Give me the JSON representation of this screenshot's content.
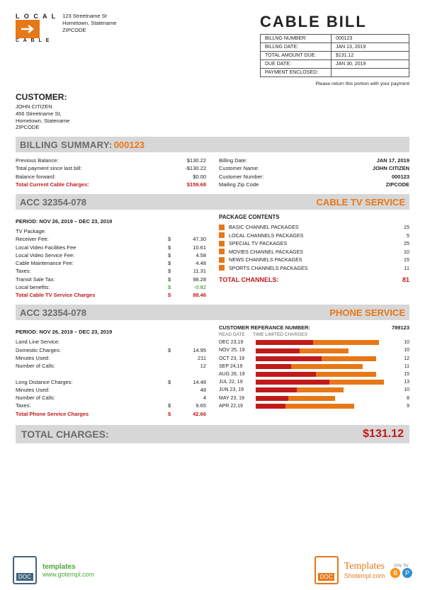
{
  "company": {
    "name_top": "L O C A L",
    "name_bottom": "C A B L E",
    "address": [
      "123 Streetname St",
      "Hometown, Statename",
      "ZIPCODE"
    ]
  },
  "title": "CABLE  BILL",
  "info_box": [
    {
      "label": "BILLNG NUMBER:",
      "value": "000123"
    },
    {
      "label": "BILLNG DATE:",
      "value": "JAN 13, 2019"
    },
    {
      "label": "TOTAL AMOUNT DUE:",
      "value": "$131.12"
    },
    {
      "label": "DUE DATE:",
      "value": "JAN 30, 2019"
    },
    {
      "label": "PAYMENT ENCLOSED:",
      "value": ""
    }
  ],
  "return_note": "Please return this portion with your payment",
  "customer": {
    "heading": "CUSTOMER:",
    "lines": [
      "JOHN CITIZEN",
      "456 Streetname St,",
      "Hometown, Statename",
      "ZIPCODE"
    ]
  },
  "billing_summary": {
    "heading": "BILLING SUMMARY:",
    "number": "000123",
    "left": [
      {
        "label": "Previous Balance:",
        "value": "$130.22"
      },
      {
        "label": "Total payment since last bill:",
        "value": "-$130.22"
      },
      {
        "label": "Balance forward:",
        "value": "$0.00"
      },
      {
        "label": "Total Current Cable Charges:",
        "value": "$159.68",
        "red": true
      }
    ],
    "right": [
      {
        "label": "Billing Date:",
        "value": "JAN 17, 2019"
      },
      {
        "label": "Customer Name:",
        "value": "JOHN CITIZEN"
      },
      {
        "label": "Customer Number:",
        "value": "000123"
      },
      {
        "label": "Mailing Zip Code",
        "value": "ZIPCODE"
      }
    ]
  },
  "tv": {
    "account": "ACC 32354-078",
    "service": "CABLE TV SERVICE",
    "period": "PERIOD: NOV 26, 2019 – DEC 23, 2019",
    "lines": [
      {
        "label": "TV Package:",
        "amount": ""
      },
      {
        "label": "Receiver Fee:",
        "amount": "47.30"
      },
      {
        "label": "Local Video Facilities Fee",
        "amount": "10.61"
      },
      {
        "label": "Local Video Service Fee:",
        "amount": "4.58"
      },
      {
        "label": "Cable Maintenance Fee:",
        "amount": "4.48"
      },
      {
        "label": "Taxes:",
        "amount": "11.31"
      },
      {
        "label": "Transit Sale Tax:",
        "amount": "98.28"
      },
      {
        "label": "Local benefits:",
        "amount": "-0.82",
        "green": true
      }
    ],
    "total": {
      "label": "Total Cable TV Service Charges",
      "amount": "88.46"
    },
    "packages_title": "PACKAGE CONTENTS",
    "packages": [
      {
        "name": "BASIC CHANNEL PACKAGES",
        "count": "15"
      },
      {
        "name": "LOCAL CHANNELS PACKAGES",
        "count": "5"
      },
      {
        "name": "SPECIAL TV PACKAGES",
        "count": "25"
      },
      {
        "name": "MOVIES CHANNEL PACKAGES",
        "count": "10"
      },
      {
        "name": "NEWS CHANNELS PACKAGES",
        "count": "15"
      },
      {
        "name": "SPORTS CHANNELS PACKAGES",
        "count": "11"
      }
    ],
    "packages_total": {
      "label": "TOTAL CHANNELS:",
      "value": "81"
    },
    "swatch_color": "#e77817"
  },
  "phone": {
    "account": "ACC 32354-078",
    "service": "PHONE SERVICE",
    "period": "PERIOD: NOV 26, 2019 – DEC 23, 2019",
    "lines": [
      {
        "label": "Land Line Service:",
        "amount": ""
      },
      {
        "label": "Domestic Charges:",
        "amount": "14.95"
      },
      {
        "label": "Minutes Used:",
        "amount": "211",
        "nodollar": true
      },
      {
        "label": "Number of Calls:",
        "amount": "12",
        "nodollar": true
      },
      {
        "label": "",
        "amount": ""
      },
      {
        "label": "Long Distance Charges:",
        "amount": "14.48"
      },
      {
        "label": "Minutes Used:",
        "amount": "48",
        "nodollar": true
      },
      {
        "label": "Number of Calls:",
        "amount": "4",
        "nodollar": true
      },
      {
        "label": "Taxes:",
        "amount": "9.65"
      }
    ],
    "total": {
      "label": "Total Phone Service Charges",
      "amount": "42.66"
    },
    "ref_label": "CUSTOMER REFERANCE NUMBER:",
    "ref_value": "789123",
    "chart_headers": [
      "READ DATE",
      "TIME LIMITED CHARGES",
      ""
    ],
    "chart": [
      {
        "date": "DEC 23,19",
        "a": 42,
        "b": 48,
        "v": "10"
      },
      {
        "date": "NOV 25, 19",
        "a": 32,
        "b": 36,
        "v": "10"
      },
      {
        "date": "OCT 23, 19",
        "a": 48,
        "b": 40,
        "v": "12"
      },
      {
        "date": "SEP 24,19",
        "a": 26,
        "b": 52,
        "v": "11"
      },
      {
        "date": "AUG 26, 19",
        "a": 44,
        "b": 44,
        "v": "15"
      },
      {
        "date": "JUL 22, 19",
        "a": 54,
        "b": 40,
        "v": "13"
      },
      {
        "date": "JUN 23, 19",
        "a": 30,
        "b": 34,
        "v": "10"
      },
      {
        "date": "MAY 23, 19",
        "a": 24,
        "b": 34,
        "v": "8"
      },
      {
        "date": "APR 22,19",
        "a": 22,
        "b": 50,
        "v": "9"
      }
    ],
    "chart_colors": {
      "a": "#c21a1a",
      "b": "#e77817"
    }
  },
  "grand_total": {
    "label": "TOTAL CHARGES:",
    "value": "$131.12"
  },
  "footer": {
    "doc": "DOC",
    "gotempl": "templates",
    "gotempl_url": "www.gotempl.com",
    "shotempl": "Templates",
    "shotempl_url": "Shotempl.com",
    "pay": "pay by"
  }
}
